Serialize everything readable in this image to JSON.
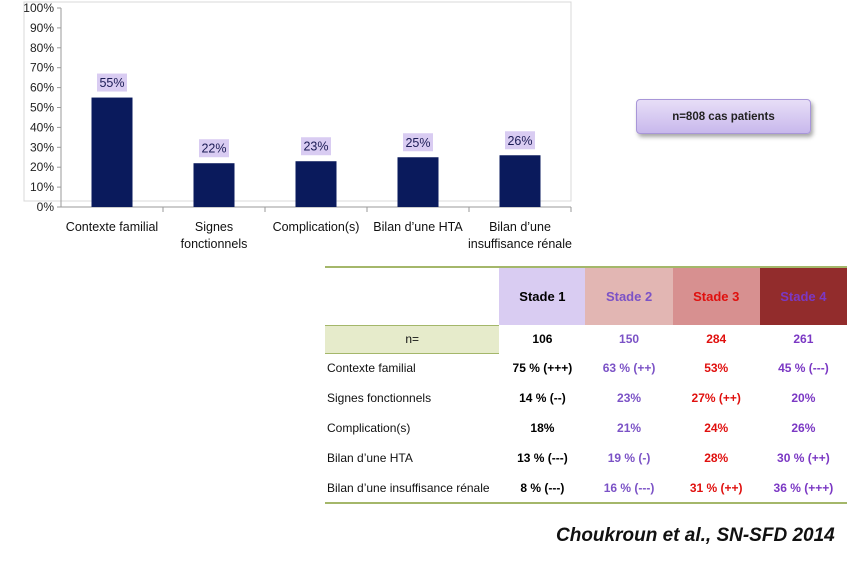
{
  "chart_data": {
    "type": "bar",
    "categories": [
      [
        "Contexte familial"
      ],
      [
        "Signes",
        "fonctionnels"
      ],
      [
        "Complication(s)"
      ],
      [
        "Bilan d’une HTA"
      ],
      [
        "Bilan d’une",
        "insuffisance rénale"
      ]
    ],
    "values": [
      55,
      22,
      23,
      25,
      26
    ],
    "data_labels": [
      "55%",
      "22%",
      "23%",
      "25%",
      "26%"
    ],
    "yticks": [
      "0%",
      "10%",
      "20%",
      "30%",
      "40%",
      "50%",
      "60%",
      "70%",
      "80%",
      "90%",
      "100%"
    ],
    "ylim": [
      0,
      100
    ],
    "grid": false,
    "colors": {
      "bar": "#0a1a5c",
      "label_bg": "#d9ccf2",
      "axis": "#9a9a9a"
    }
  },
  "badge": {
    "text": "n=808 cas patients"
  },
  "table": {
    "headers": [
      "",
      "Stade 1",
      "Stade 2",
      "Stade 3",
      "Stade 4"
    ],
    "header_bg": [
      "#ffffff",
      "#d9ccf2",
      "#e2b6b3",
      "#d79090",
      "#922c2c"
    ],
    "header_color": [
      "#000000",
      "#000000",
      "#7b52c6",
      "#e0100e",
      "#7b38c4"
    ],
    "n_row": {
      "label": "n=",
      "values": [
        "106",
        "150",
        "284",
        "261"
      ]
    },
    "rows": [
      {
        "label": "Contexte familial",
        "values": [
          "75 % (+++)",
          "63 % (++)",
          "53%",
          "45 % (---)"
        ]
      },
      {
        "label": "Signes fonctionnels",
        "values": [
          "14 % (--)",
          "23%",
          "27% (++)",
          "20%"
        ]
      },
      {
        "label": "Complication(s)",
        "values": [
          "18%",
          "21%",
          "24%",
          "26%"
        ]
      },
      {
        "label": "Bilan d’une HTA",
        "values": [
          "13 % (---)",
          "19 % (-)",
          "28%",
          "30 % (++)"
        ]
      },
      {
        "label": "Bilan d’une insuffisance rénale",
        "values": [
          "8 % (---)",
          "16 % (---)",
          "31 % (++)",
          "36 % (+++)"
        ]
      }
    ]
  },
  "citation": "Choukroun et al., SN-SFD 2014"
}
